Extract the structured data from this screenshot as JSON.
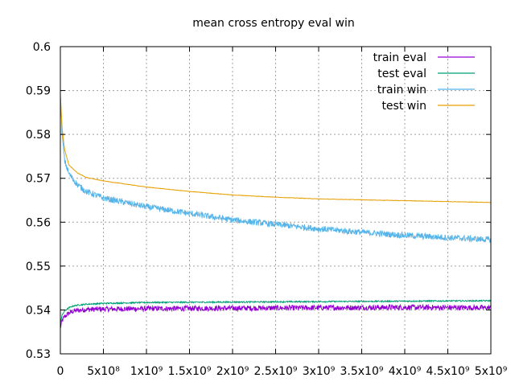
{
  "chart_data": {
    "type": "line",
    "title": "mean cross entropy eval win",
    "xlabel": "",
    "ylabel": "",
    "xlim": [
      0,
      5000000000
    ],
    "ylim": [
      0.53,
      0.6
    ],
    "x_ticks": [
      0,
      500000000,
      1000000000,
      1500000000,
      2000000000,
      2500000000,
      3000000000,
      3500000000,
      4000000000,
      4500000000,
      5000000000
    ],
    "x_tick_labels": [
      "0",
      "5x10⁸",
      "1x10⁹",
      "1.5x10⁹",
      "2x10⁹",
      "2.5x10⁹",
      "3x10⁹",
      "3.5x10⁹",
      "4x10⁹",
      "4.5x10⁹",
      "5x10⁹"
    ],
    "y_ticks": [
      0.53,
      0.54,
      0.55,
      0.56,
      0.57,
      0.58,
      0.59,
      0.6
    ],
    "y_tick_labels": [
      "0.53",
      "0.54",
      "0.55",
      "0.56",
      "0.57",
      "0.58",
      "0.59",
      "0.6"
    ],
    "grid": true,
    "legend_position": "top-right",
    "series": [
      {
        "name": "train eval",
        "color": "#9400d3",
        "noise": 0.0006,
        "x": [
          0,
          20000000,
          50000000,
          100000000,
          150000000,
          200000000,
          300000000,
          500000000,
          1000000000,
          2000000000,
          3000000000,
          4000000000,
          5000000000
        ],
        "y": [
          0.536,
          0.5375,
          0.5385,
          0.5393,
          0.5397,
          0.5399,
          0.5401,
          0.5402,
          0.5403,
          0.5404,
          0.5405,
          0.5406,
          0.5405
        ]
      },
      {
        "name": "test eval",
        "color": "#009e73",
        "noise": 0.00015,
        "x": [
          0,
          20000000,
          50000000,
          100000000,
          150000000,
          200000000,
          300000000,
          500000000,
          1000000000,
          2000000000,
          3000000000,
          4000000000,
          5000000000
        ],
        "y": [
          0.537,
          0.5388,
          0.5398,
          0.5405,
          0.5409,
          0.5411,
          0.5413,
          0.5415,
          0.5417,
          0.5418,
          0.5419,
          0.542,
          0.5421
        ]
      },
      {
        "name": "train win",
        "color": "#56b4e9",
        "noise": 0.0007,
        "x": [
          0,
          20000000,
          50000000,
          100000000,
          200000000,
          300000000,
          500000000,
          1000000000,
          1500000000,
          2000000000,
          2500000000,
          3000000000,
          3500000000,
          4000000000,
          4500000000,
          5000000000
        ],
        "y": [
          0.589,
          0.58,
          0.574,
          0.571,
          0.5685,
          0.567,
          0.5655,
          0.5635,
          0.562,
          0.5605,
          0.5595,
          0.5585,
          0.5577,
          0.557,
          0.5565,
          0.556
        ]
      },
      {
        "name": "test win",
        "color": "#e69f00",
        "noise": 5e-05,
        "x": [
          0,
          20000000,
          50000000,
          100000000,
          200000000,
          300000000,
          500000000,
          1000000000,
          1500000000,
          2000000000,
          2500000000,
          3000000000,
          3500000000,
          4000000000,
          4500000000,
          5000000000
        ],
        "y": [
          0.589,
          0.5815,
          0.5765,
          0.573,
          0.5712,
          0.5702,
          0.5694,
          0.568,
          0.567,
          0.5662,
          0.5657,
          0.5653,
          0.5651,
          0.5649,
          0.5647,
          0.5645
        ]
      }
    ]
  }
}
